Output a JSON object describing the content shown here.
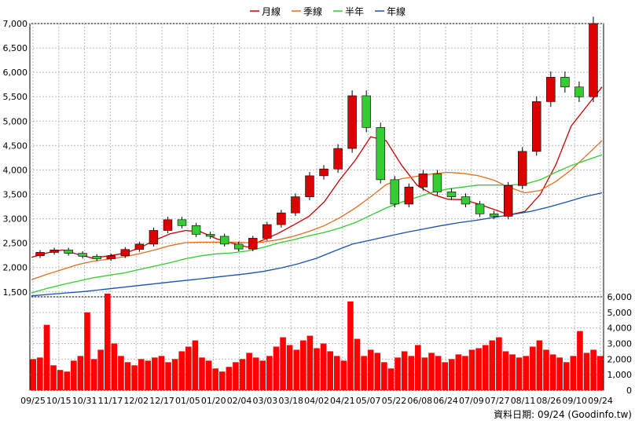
{
  "chart_data": [
    {
      "type": "candlestick_line",
      "panel": "price",
      "ylim": [
        1400,
        7000
      ],
      "y_ticks": [
        "1,500",
        "2,000",
        "2,500",
        "3,000",
        "3,500",
        "4,000",
        "4,500",
        "5,000",
        "5,500",
        "6,000",
        "6,500",
        "7,000"
      ],
      "y_tick_values": [
        1500,
        2000,
        2500,
        3000,
        3500,
        4000,
        4500,
        5000,
        5500,
        6000,
        6500,
        7000
      ],
      "grid": true,
      "legend_position": "top-center",
      "series": [
        {
          "name": "月線",
          "color": "#cc0000",
          "values": [
            2210,
            2300,
            2360,
            2270,
            2190,
            2240,
            2290,
            2400,
            2560,
            2690,
            2760,
            2730,
            2590,
            2500,
            2420,
            2560,
            2700,
            2870,
            3050,
            3350,
            3800,
            4200,
            4680,
            4600,
            4100,
            3690,
            3500,
            3400,
            3390,
            3300,
            3190,
            3080,
            3150,
            3500,
            4100,
            4900,
            5300,
            5700
          ]
        },
        {
          "name": "季線",
          "color": "#e07020",
          "values": [
            1750,
            1860,
            1960,
            2060,
            2130,
            2170,
            2220,
            2280,
            2360,
            2450,
            2510,
            2520,
            2520,
            2520,
            2510,
            2520,
            2570,
            2640,
            2740,
            2860,
            3020,
            3220,
            3450,
            3700,
            3820,
            3870,
            3920,
            3950,
            3930,
            3880,
            3790,
            3640,
            3530,
            3580,
            3760,
            4000,
            4300,
            4600
          ]
        },
        {
          "name": "半年",
          "color": "#33cc33",
          "values": [
            1480,
            1570,
            1650,
            1720,
            1790,
            1840,
            1890,
            1960,
            2030,
            2100,
            2180,
            2240,
            2280,
            2300,
            2340,
            2410,
            2500,
            2570,
            2650,
            2720,
            2810,
            2920,
            3070,
            3220,
            3340,
            3440,
            3540,
            3610,
            3650,
            3690,
            3690,
            3690,
            3710,
            3800,
            3950,
            4090,
            4200,
            4310
          ]
        },
        {
          "name": "年線",
          "color": "#1a50b0",
          "values": [
            1420,
            1450,
            1480,
            1510,
            1550,
            1590,
            1630,
            1670,
            1710,
            1750,
            1790,
            1830,
            1870,
            1920,
            1990,
            2080,
            2190,
            2340,
            2480,
            2560,
            2640,
            2720,
            2790,
            2860,
            2920,
            2970,
            3030,
            3090,
            3150,
            3240,
            3340,
            3450,
            3530
          ]
        }
      ],
      "price_close": [
        2310,
        2360,
        2290,
        2230,
        2180,
        2240,
        2370,
        2480,
        2760,
        2980,
        2860,
        2680,
        2640,
        2480,
        2380,
        2600,
        2880,
        3120,
        3450,
        3880,
        4020,
        4440,
        5520,
        4870,
        3800,
        3300,
        3650,
        3920,
        3550,
        3450,
        3300,
        3100,
        3050,
        3680,
        4380,
        5400,
        5900,
        5700,
        5500,
        7000
      ]
    },
    {
      "type": "bar",
      "panel": "volume",
      "ylim": [
        0,
        6000
      ],
      "y_ticks": [
        "0",
        "1,000",
        "2,000",
        "3,000",
        "4,000",
        "5,000",
        "6,000"
      ],
      "y_tick_values": [
        0,
        1000,
        2000,
        3000,
        4000,
        5000,
        6000
      ],
      "color": "#ff0000",
      "values": [
        2000,
        2100,
        4200,
        1600,
        1300,
        1200,
        1900,
        2200,
        5000,
        2000,
        2600,
        6200,
        3000,
        2200,
        1800,
        1600,
        2000,
        1900,
        2100,
        2200,
        1800,
        2000,
        2500,
        2800,
        3200,
        2100,
        1900,
        1400,
        1200,
        1500,
        1800,
        2000,
        2400,
        2100,
        1900,
        2200,
        2800,
        3400,
        2900,
        2600,
        3200,
        3500,
        2700,
        3000,
        2500,
        2200,
        1900,
        5700,
        3300,
        2200,
        2600,
        2400,
        1800,
        1400,
        2100,
        2500,
        2200,
        2900,
        2100,
        2400,
        2200,
        1800,
        2000,
        2300,
        2200,
        2600,
        2700,
        2900,
        3200,
        3400,
        2500,
        2300,
        2100,
        2200,
        2800,
        3200,
        2600,
        2300,
        2100,
        1800,
        2200,
        3800,
        2400,
        2600,
        2200
      ]
    }
  ],
  "x_ticks": [
    "09/25",
    "10/15",
    "10/31",
    "11/17",
    "12/02",
    "12/17",
    "01/05",
    "01/20",
    "02/04",
    "03/03",
    "03/18",
    "04/02",
    "04/21",
    "05/07",
    "05/22",
    "06/08",
    "06/24",
    "07/09",
    "07/27",
    "08/11",
    "08/26",
    "09/10",
    "09/24"
  ],
  "footer": "資料日期: 09/24  (Goodinfo.tw)"
}
